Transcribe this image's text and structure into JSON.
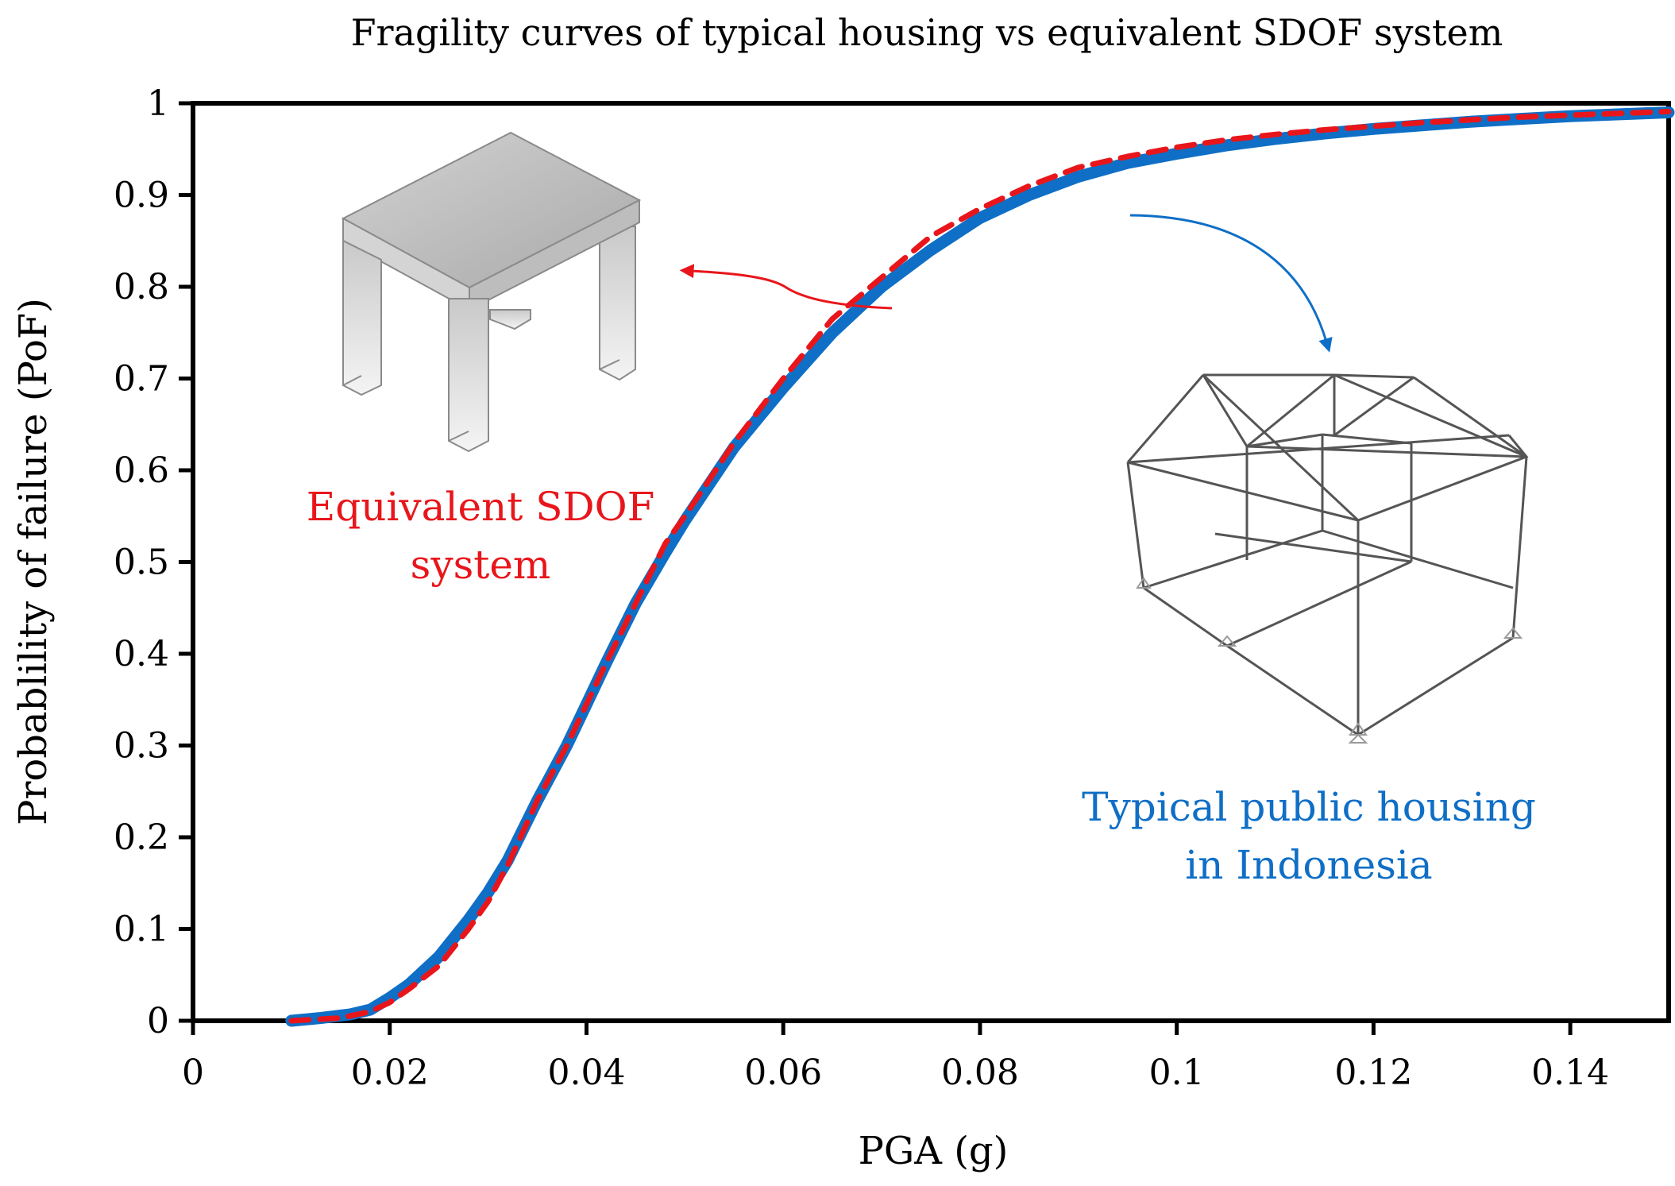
{
  "chart_data": {
    "type": "line",
    "title": "Fragility curves of  typical housing vs equivalent SDOF system",
    "xlabel": "PGA (g)",
    "ylabel": "Probablility of  failure (PoF)",
    "xlim": [
      0,
      0.15
    ],
    "ylim": [
      0,
      1
    ],
    "xticks": [
      0,
      0.02,
      0.04,
      0.06,
      0.08,
      0.1,
      0.12,
      0.14
    ],
    "xtick_labels": [
      "0",
      "0.02",
      "0.04",
      "0.06",
      "0.08",
      "0.1",
      "0.12",
      "0.14"
    ],
    "yticks": [
      0,
      0.1,
      0.2,
      0.3,
      0.4,
      0.5,
      0.6,
      0.7,
      0.8,
      0.9,
      1
    ],
    "ytick_labels": [
      "0",
      "0.1",
      "0.2",
      "0.3",
      "0.4",
      "0.5",
      "0.6",
      "0.7",
      "0.8",
      "0.9",
      "1"
    ],
    "grid": false,
    "series": [
      {
        "style": "dashed",
        "color": "#e8161b",
        "x": [
          0.01,
          0.015,
          0.018,
          0.02,
          0.022,
          0.025,
          0.028,
          0.03,
          0.032,
          0.035,
          0.038,
          0.04,
          0.042,
          0.045,
          0.048,
          0.05,
          0.055,
          0.06,
          0.065,
          0.07,
          0.075,
          0.08,
          0.085,
          0.09,
          0.095,
          0.1,
          0.105,
          0.11,
          0.115,
          0.12,
          0.125,
          0.13,
          0.135,
          0.14,
          0.145,
          0.15
        ],
        "y": [
          0.0,
          0.003,
          0.01,
          0.02,
          0.035,
          0.06,
          0.1,
          0.13,
          0.17,
          0.24,
          0.3,
          0.345,
          0.39,
          0.455,
          0.52,
          0.55,
          0.63,
          0.7,
          0.765,
          0.81,
          0.855,
          0.885,
          0.91,
          0.93,
          0.942,
          0.952,
          0.96,
          0.966,
          0.971,
          0.975,
          0.979,
          0.982,
          0.985,
          0.987,
          0.989,
          0.991
        ]
      },
      {
        "style": "solid",
        "color": "#0f6fc6",
        "x": [
          0.01,
          0.013,
          0.016,
          0.018,
          0.02,
          0.022,
          0.025,
          0.028,
          0.03,
          0.032,
          0.035,
          0.038,
          0.04,
          0.042,
          0.045,
          0.048,
          0.05,
          0.055,
          0.06,
          0.065,
          0.07,
          0.075,
          0.08,
          0.085,
          0.09,
          0.095,
          0.1,
          0.105,
          0.11,
          0.115,
          0.12,
          0.125,
          0.13,
          0.135,
          0.14,
          0.145,
          0.15
        ],
        "y": [
          0.0,
          0.003,
          0.007,
          0.012,
          0.025,
          0.04,
          0.07,
          0.11,
          0.14,
          0.175,
          0.24,
          0.3,
          0.345,
          0.39,
          0.455,
          0.51,
          0.545,
          0.625,
          0.69,
          0.75,
          0.8,
          0.84,
          0.875,
          0.9,
          0.92,
          0.935,
          0.945,
          0.954,
          0.961,
          0.967,
          0.972,
          0.976,
          0.98,
          0.983,
          0.986,
          0.988,
          0.99
        ]
      }
    ],
    "annotations": [
      {
        "lines": [
          "Equivalent SDOF",
          "system"
        ],
        "color": "#e8161b"
      },
      {
        "lines": [
          "Typical public housing",
          "in Indonesia"
        ],
        "color": "#0f6fc6"
      }
    ]
  }
}
